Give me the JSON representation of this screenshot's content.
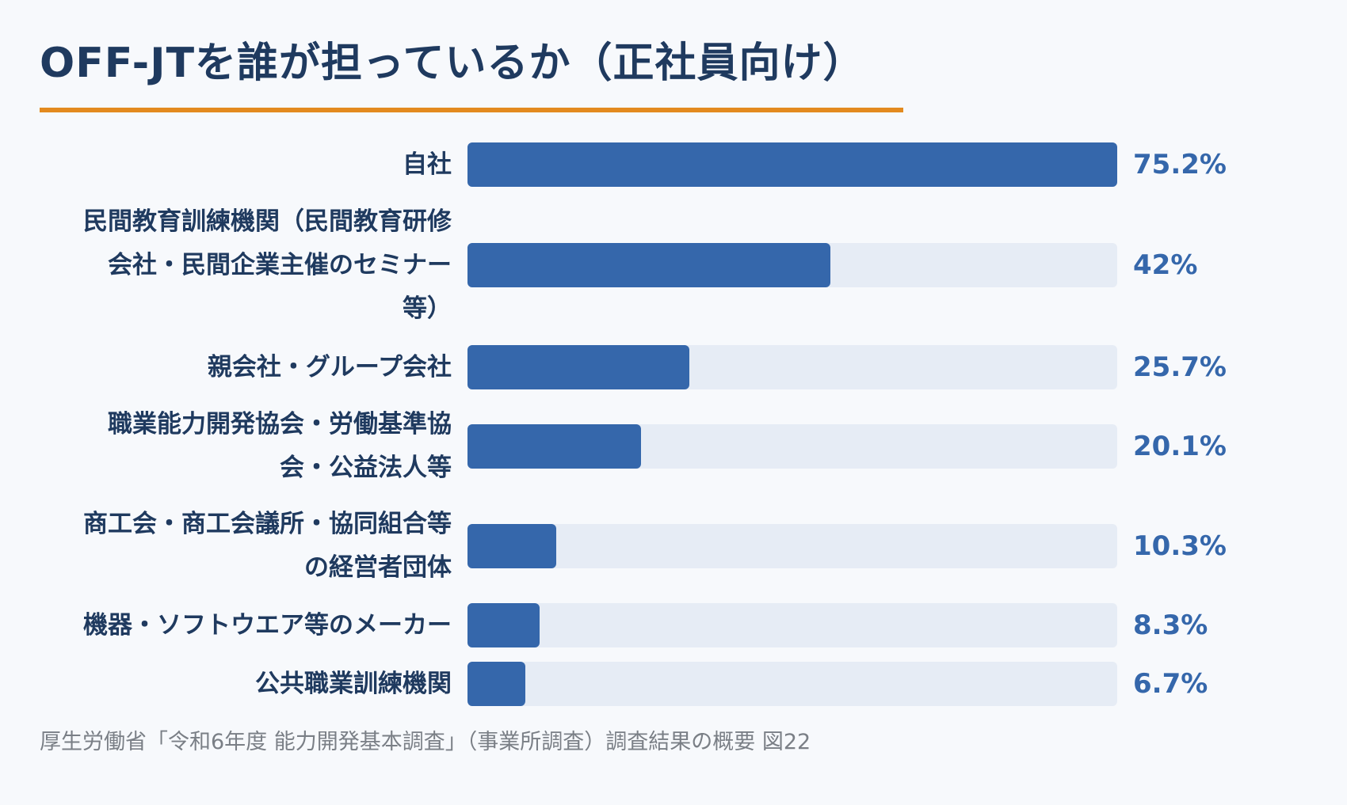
{
  "title": "OFF-JTを誰が担っているか（正社員向け）",
  "source": "厚生労働省「令和6年度 能力開発基本調査」（事業所調査）調査結果の概要 図22",
  "colors": {
    "bar": "#3567ab",
    "track": "#e6ecf5",
    "accent": "#e38a1f",
    "text": "#1f3a5f"
  },
  "chart_data": {
    "type": "bar",
    "orientation": "horizontal",
    "title": "OFF-JTを誰が担っているか（正社員向け）",
    "xlim": [
      0,
      75.2
    ],
    "grid": false,
    "categories": [
      [
        "自社"
      ],
      [
        "民間教育訓練機関（民間教育研修",
        "会社・民間企業主催のセミナー",
        "等）"
      ],
      [
        "親会社・グループ会社"
      ],
      [
        "職業能力開発協会・労働基準協",
        "会・公益法人等"
      ],
      [
        "商工会・商工会議所・協同組合等",
        "の経営者団体"
      ],
      [
        "機器・ソフトウエア等のメーカー"
      ],
      [
        "公共職業訓練機関"
      ]
    ],
    "values": [
      75.2,
      42,
      25.7,
      20.1,
      10.3,
      8.3,
      6.7
    ],
    "value_labels": [
      "75.2%",
      "42%",
      "25.7%",
      "20.1%",
      "10.3%",
      "8.3%",
      "6.7%"
    ]
  }
}
